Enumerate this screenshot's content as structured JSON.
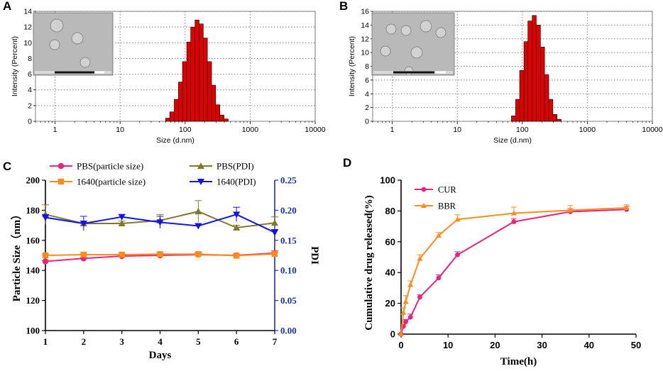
{
  "colors": {
    "bar_red": "#e00000",
    "axis": "#000000",
    "grid": "#808080",
    "pbs_size": "#e8257b",
    "rpmi_size": "#ff8c1a",
    "pbs_pdi": "#7f7a2a",
    "rpmi_pdi": "#1414e6",
    "right_axis": "#1f2fa8",
    "cur": "#e8257b",
    "bbr": "#ff8c1a",
    "tem_bg": "#b9b9b9",
    "tem_particle": "#d2d2d2"
  },
  "chart_data": [
    {
      "id": "A",
      "panel_label": "A",
      "type": "bar",
      "xscale": "log",
      "xlim": [
        0.5,
        10000
      ],
      "ylim": [
        0,
        14
      ],
      "xticks": [
        1,
        10,
        100,
        1000,
        10000
      ],
      "xtick_labels": [
        "1",
        "10",
        "100",
        "1000",
        "10000"
      ],
      "yticks": [
        0,
        2,
        4,
        6,
        8,
        10,
        12,
        14
      ],
      "ytick_labels": [
        "0",
        "2",
        "4",
        "6",
        "8",
        "10",
        "12",
        "14"
      ],
      "xlabel": "Size (d.nm)",
      "ylabel": "Intensity (Percent)",
      "grid": true,
      "bins": [
        {
          "from": 50,
          "to": 58,
          "value": 0.4
        },
        {
          "from": 58,
          "to": 68,
          "value": 1.2
        },
        {
          "from": 68,
          "to": 79,
          "value": 2.8
        },
        {
          "from": 79,
          "to": 91,
          "value": 5.0
        },
        {
          "from": 91,
          "to": 106,
          "value": 7.6
        },
        {
          "from": 106,
          "to": 122,
          "value": 10.1
        },
        {
          "from": 122,
          "to": 142,
          "value": 12.0
        },
        {
          "from": 142,
          "to": 164,
          "value": 12.9
        },
        {
          "from": 164,
          "to": 190,
          "value": 12.4
        },
        {
          "from": 190,
          "to": 220,
          "value": 10.6
        },
        {
          "from": 220,
          "to": 255,
          "value": 7.6
        },
        {
          "from": 255,
          "to": 295,
          "value": 4.6
        },
        {
          "from": 295,
          "to": 342,
          "value": 2.1
        },
        {
          "from": 342,
          "to": 396,
          "value": 0.8
        },
        {
          "from": 396,
          "to": 459,
          "value": 0.3
        }
      ]
    },
    {
      "id": "B",
      "panel_label": "B",
      "type": "bar",
      "xscale": "log",
      "xlim": [
        0.5,
        10000
      ],
      "ylim": [
        0,
        16
      ],
      "xticks": [
        1,
        10,
        100,
        1000,
        10000
      ],
      "xtick_labels": [
        "1",
        "10",
        "100",
        "1000",
        "10000"
      ],
      "yticks": [
        0,
        2,
        4,
        6,
        8,
        10,
        12,
        14,
        16
      ],
      "ytick_labels": [
        "0",
        "2",
        "4",
        "6",
        "8",
        "10",
        "12",
        "14",
        "16"
      ],
      "xlabel": "Size (d.nm)",
      "ylabel": "Intensity (Percent)",
      "grid": true,
      "bins": [
        {
          "from": 68,
          "to": 79,
          "value": 0.8
        },
        {
          "from": 79,
          "to": 91,
          "value": 3.2
        },
        {
          "from": 91,
          "to": 106,
          "value": 7.4
        },
        {
          "from": 106,
          "to": 122,
          "value": 11.6
        },
        {
          "from": 122,
          "to": 142,
          "value": 14.6
        },
        {
          "from": 142,
          "to": 164,
          "value": 15.4
        },
        {
          "from": 164,
          "to": 190,
          "value": 14.0
        },
        {
          "from": 190,
          "to": 220,
          "value": 10.8
        },
        {
          "from": 220,
          "to": 255,
          "value": 6.8
        },
        {
          "from": 255,
          "to": 295,
          "value": 3.2
        },
        {
          "from": 295,
          "to": 342,
          "value": 1.0
        },
        {
          "from": 342,
          "to": 396,
          "value": 0.3
        }
      ]
    },
    {
      "id": "C",
      "panel_label": "C",
      "type": "line",
      "x": [
        1,
        2,
        3,
        4,
        5,
        6,
        7
      ],
      "xlim": [
        1,
        7
      ],
      "xticks": [
        1,
        2,
        3,
        4,
        5,
        6,
        7
      ],
      "xtick_labels": [
        "1",
        "2",
        "3",
        "4",
        "5",
        "6",
        "7"
      ],
      "xlabel": "Days",
      "ylabel": "Particle Size（nm）",
      "ylabel_right": "PDI",
      "ylim": [
        100,
        200
      ],
      "yticks": [
        100,
        120,
        140,
        160,
        180,
        200
      ],
      "ytick_labels": [
        "100",
        "120",
        "140",
        "160",
        "180",
        "200"
      ],
      "ylim_right": [
        0,
        0.25
      ],
      "yticks_right": [
        0,
        0.05,
        0.1,
        0.15,
        0.2,
        0.25
      ],
      "ytick_labels_right": [
        "0.00",
        "0.05",
        "0.10",
        "0.15",
        "0.20",
        "0.25"
      ],
      "legend": "top",
      "series": [
        {
          "name": "PBS(particle size)",
          "axis": "left",
          "marker": "circle",
          "color_key": "pbs_size",
          "values": [
            146,
            148,
            149.5,
            150,
            150.5,
            150,
            151.5
          ],
          "errors": [
            0.5,
            0.5,
            0.5,
            0.8,
            1.2,
            0.8,
            1.5
          ]
        },
        {
          "name": "1640(particle size)",
          "axis": "left",
          "marker": "square",
          "color_key": "rpmi_size",
          "values": [
            150,
            150.5,
            150.5,
            150.8,
            150.8,
            149.8,
            151
          ],
          "errors": [
            0.5,
            0.5,
            0.5,
            0.8,
            1.2,
            0.8,
            1.0
          ]
        },
        {
          "name": "PBS(PDI)",
          "axis": "right",
          "marker": "triangle-up",
          "color_key": "pbs_pdi",
          "values": [
            0.193,
            0.178,
            0.178,
            0.183,
            0.198,
            0.171,
            0.179
          ],
          "errors": [
            0.016,
            0.004,
            0.004,
            0.01,
            0.018,
            0.004,
            0.01
          ]
        },
        {
          "name": "1640(PDI)",
          "axis": "right",
          "marker": "triangle-down",
          "color_key": "rpmi_pdi",
          "values": [
            0.188,
            0.178,
            0.189,
            0.18,
            0.174,
            0.193,
            0.163
          ],
          "errors": [
            0.005,
            0.012,
            0.004,
            0.01,
            0.004,
            0.012,
            0.005
          ]
        }
      ]
    },
    {
      "id": "D",
      "panel_label": "D",
      "type": "line",
      "xlim": [
        0,
        50
      ],
      "xticks": [
        0,
        10,
        20,
        30,
        40,
        50
      ],
      "xtick_labels": [
        "0",
        "10",
        "20",
        "30",
        "40",
        "50"
      ],
      "ylim": [
        0,
        100
      ],
      "yticks": [
        0,
        20,
        40,
        60,
        80,
        100
      ],
      "ytick_labels": [
        "0",
        "20",
        "40",
        "60",
        "80",
        "100"
      ],
      "xlabel": "Time(h)",
      "ylabel": "Cumulative drug released(%)",
      "legend": "top-left",
      "series": [
        {
          "name": "CUR",
          "marker": "circle",
          "color_key": "cur",
          "x": [
            0,
            0.5,
            1,
            2,
            4,
            8,
            12,
            24,
            36,
            48
          ],
          "values": [
            0,
            5,
            8,
            11,
            24,
            36.5,
            51.5,
            73,
            79.5,
            81
          ],
          "errors": [
            0,
            1,
            1.5,
            2,
            1.5,
            2,
            2,
            2,
            2,
            2
          ]
        },
        {
          "name": "BBR",
          "marker": "triangle-up",
          "color_key": "bbr",
          "x": [
            0,
            0.5,
            1,
            2,
            4,
            8,
            12,
            24,
            36,
            48
          ],
          "values": [
            0,
            14,
            21,
            32,
            49,
            64,
            74.5,
            78.5,
            80.5,
            82
          ],
          "errors": [
            0,
            3,
            4,
            2.5,
            2.5,
            2,
            3,
            4,
            3,
            2
          ]
        }
      ]
    }
  ]
}
